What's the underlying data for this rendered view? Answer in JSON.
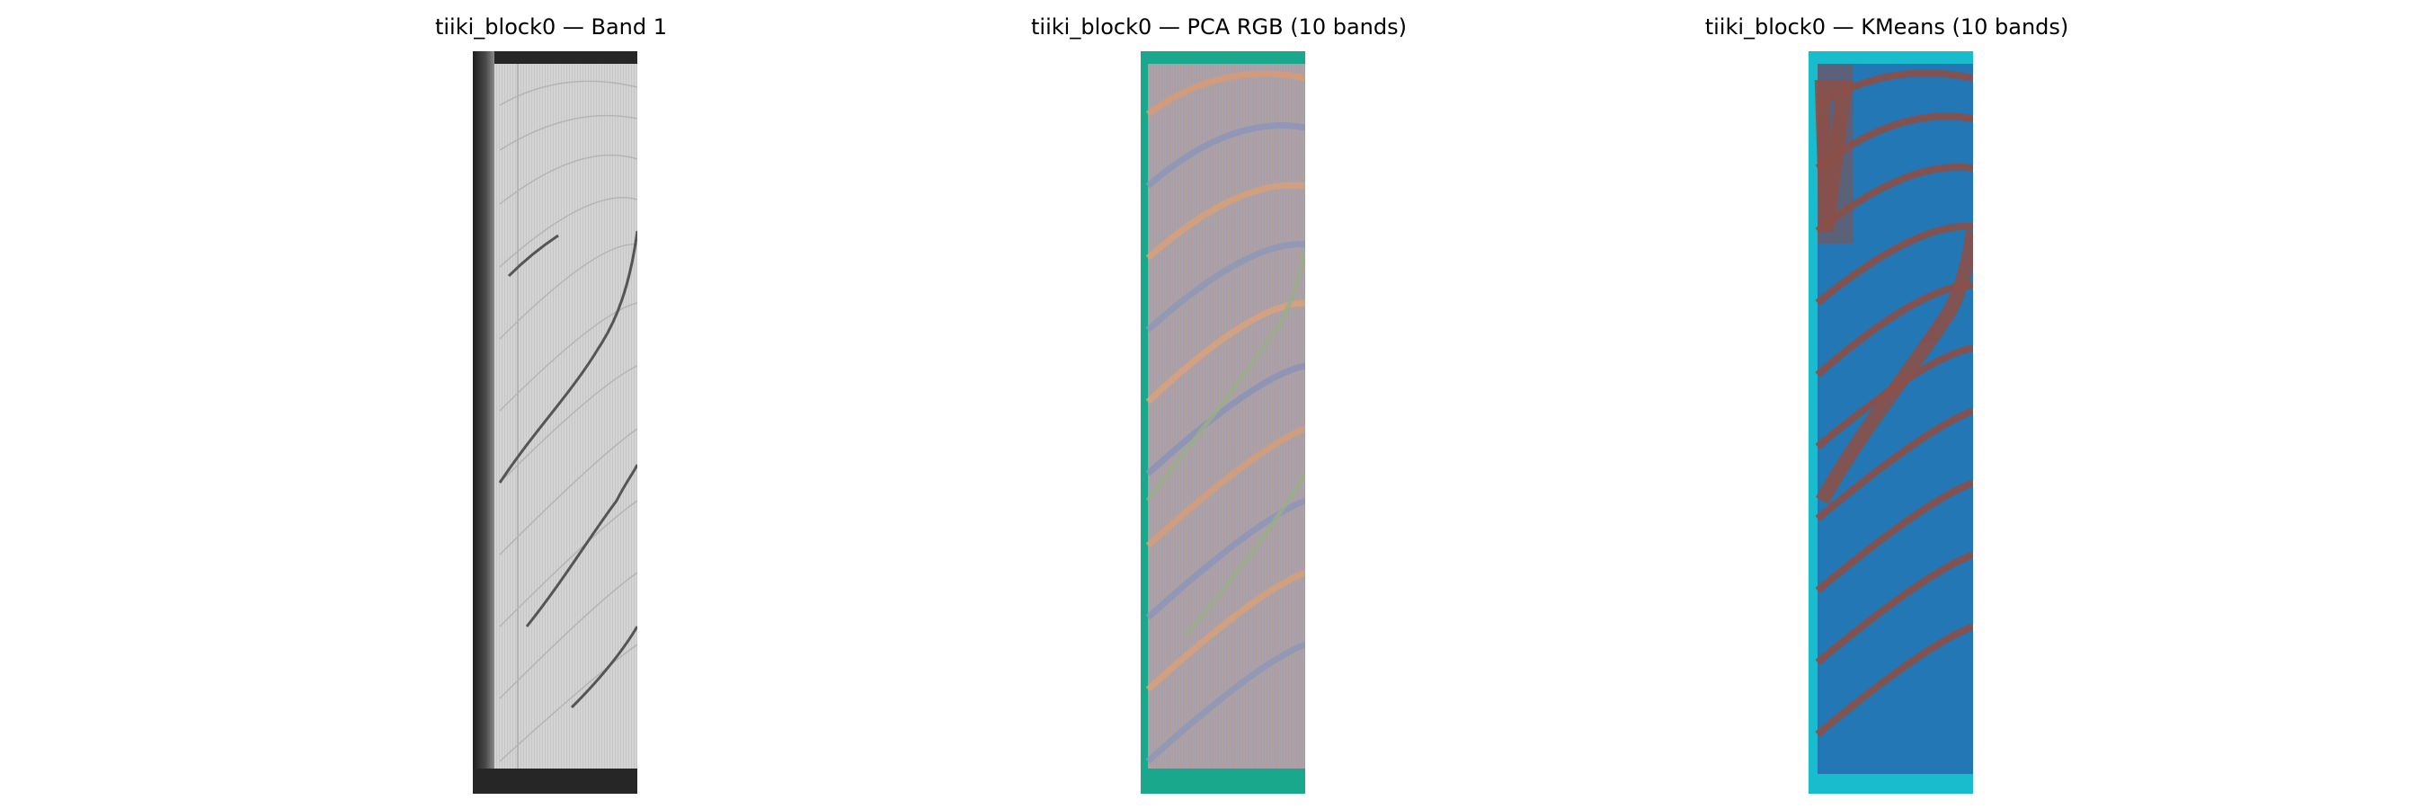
{
  "figure": {
    "panels": [
      {
        "title": "tiiki_block0 — Band 1"
      },
      {
        "title": "tiiki_block0 — PCA RGB (10 bands)"
      },
      {
        "title": "tiiki_block0 — KMeans (10 bands)"
      }
    ]
  },
  "colors": {
    "band_bg": "#cfcfcf",
    "band_dark": "#262626",
    "pca_border": "#1aa88c",
    "pca_blue": "#8c96b8",
    "pca_orange": "#d8a07a",
    "kmeans_border": "#18bccc",
    "kmeans_blue": "#2277b4",
    "kmeans_brown": "#8b5048"
  }
}
